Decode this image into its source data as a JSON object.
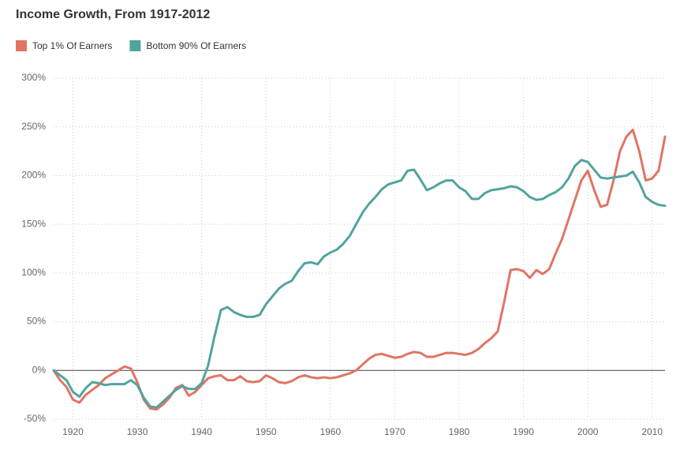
{
  "chart_data": {
    "type": "line",
    "title": "Income Growth, From 1917-2012",
    "x": [
      1917,
      1918,
      1919,
      1920,
      1921,
      1922,
      1923,
      1924,
      1925,
      1926,
      1927,
      1928,
      1929,
      1930,
      1931,
      1932,
      1933,
      1934,
      1935,
      1936,
      1937,
      1938,
      1939,
      1940,
      1941,
      1942,
      1943,
      1944,
      1945,
      1946,
      1947,
      1948,
      1949,
      1950,
      1951,
      1952,
      1953,
      1954,
      1955,
      1956,
      1957,
      1958,
      1959,
      1960,
      1961,
      1962,
      1963,
      1964,
      1965,
      1966,
      1967,
      1968,
      1969,
      1970,
      1971,
      1972,
      1973,
      1974,
      1975,
      1976,
      1977,
      1978,
      1979,
      1980,
      1981,
      1982,
      1983,
      1984,
      1985,
      1986,
      1987,
      1988,
      1989,
      1990,
      1991,
      1992,
      1993,
      1994,
      1995,
      1996,
      1997,
      1998,
      1999,
      2000,
      2001,
      2002,
      2003,
      2004,
      2005,
      2006,
      2007,
      2008,
      2009,
      2010,
      2011,
      2012
    ],
    "series": [
      {
        "name": "Top 1% Of Earners",
        "color": "#e07563",
        "values": [
          0,
          -10,
          -17,
          -30,
          -33,
          -25,
          -20,
          -15,
          -8,
          -4,
          0,
          4,
          2,
          -12,
          -30,
          -39,
          -40,
          -35,
          -28,
          -18,
          -15,
          -26,
          -22,
          -15,
          -8,
          -6,
          -5,
          -10,
          -10,
          -6,
          -11,
          -12,
          -11,
          -5,
          -8,
          -12,
          -13,
          -11,
          -7,
          -5,
          -7,
          -8,
          -7,
          -8,
          -7,
          -5,
          -3,
          0,
          6,
          12,
          16,
          17,
          15,
          13,
          14,
          17,
          19,
          18,
          14,
          14,
          16,
          18,
          18,
          17,
          16,
          18,
          22,
          28,
          33,
          40,
          70,
          103,
          104,
          102,
          95,
          103,
          99,
          104,
          120,
          135,
          155,
          175,
          195,
          205,
          185,
          168,
          170,
          195,
          225,
          240,
          247,
          225,
          195,
          197,
          205,
          240
        ]
      },
      {
        "name": "Bottom 90% Of Earners",
        "color": "#52a39e",
        "values": [
          0,
          -5,
          -10,
          -22,
          -27,
          -18,
          -12,
          -13,
          -15,
          -14,
          -14,
          -14,
          -10,
          -15,
          -28,
          -37,
          -38,
          -32,
          -26,
          -20,
          -16,
          -19,
          -19,
          -13,
          5,
          35,
          62,
          65,
          60,
          57,
          55,
          55,
          57,
          68,
          76,
          84,
          89,
          92,
          102,
          110,
          111,
          109,
          117,
          121,
          124,
          130,
          138,
          150,
          162,
          171,
          178,
          186,
          191,
          193,
          195,
          205,
          206,
          196,
          185,
          188,
          192,
          195,
          195,
          188,
          184,
          176,
          176,
          182,
          185,
          186,
          187,
          189,
          188,
          184,
          178,
          175,
          176,
          180,
          183,
          188,
          197,
          210,
          216,
          214,
          206,
          198,
          197,
          198,
          199,
          200,
          204,
          193,
          178,
          173,
          170,
          169
        ]
      }
    ],
    "xlim": [
      1917,
      2012
    ],
    "xticks": [
      1920,
      1930,
      1940,
      1950,
      1960,
      1970,
      1980,
      1990,
      2000,
      2010
    ],
    "ylim": [
      -50,
      300
    ],
    "yticks": [
      {
        "value": -50,
        "label": "-50%"
      },
      {
        "value": 0,
        "label": "0%"
      },
      {
        "value": 50,
        "label": "50%"
      },
      {
        "value": 100,
        "label": "100%"
      },
      {
        "value": 150,
        "label": "150%"
      },
      {
        "value": 200,
        "label": "200%"
      },
      {
        "value": 250,
        "label": "250%"
      },
      {
        "value": 300,
        "label": "300%"
      }
    ],
    "grid": true
  }
}
